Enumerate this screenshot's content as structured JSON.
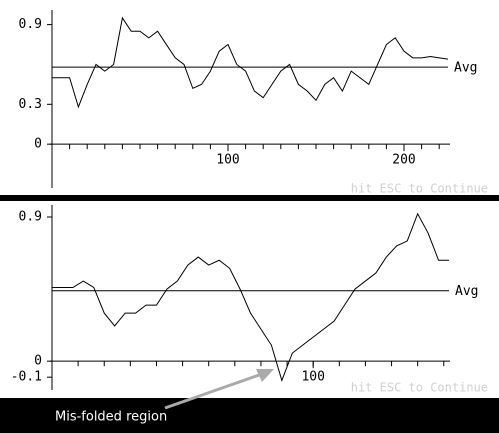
{
  "chart_data": [
    {
      "type": "line",
      "color": "#000000",
      "x": [
        0,
        5,
        10,
        15,
        20,
        25,
        30,
        35,
        40,
        45,
        50,
        55,
        60,
        65,
        70,
        75,
        80,
        85,
        90,
        95,
        100,
        105,
        110,
        115,
        120,
        125,
        130,
        135,
        140,
        145,
        150,
        155,
        160,
        165,
        170,
        175,
        180,
        185,
        190,
        195,
        200,
        205,
        210,
        215,
        220,
        225
      ],
      "values": [
        0.5,
        0.5,
        0.5,
        0.28,
        0.45,
        0.6,
        0.55,
        0.6,
        0.95,
        0.85,
        0.85,
        0.8,
        0.85,
        0.75,
        0.65,
        0.6,
        0.42,
        0.45,
        0.55,
        0.7,
        0.75,
        0.6,
        0.55,
        0.4,
        0.35,
        0.45,
        0.55,
        0.6,
        0.45,
        0.4,
        0.33,
        0.45,
        0.5,
        0.4,
        0.55,
        0.5,
        0.45,
        0.6,
        0.75,
        0.8,
        0.7,
        0.65,
        0.65,
        0.66,
        0.65,
        0.64
      ],
      "avg": 0.58,
      "avg_label": "Avg",
      "xlim": [
        0,
        225
      ],
      "ylim": [
        -0.33,
        1.01
      ],
      "xticks": [
        100,
        200
      ],
      "xminor_ticks": [
        10,
        20,
        30,
        40,
        50,
        60,
        70,
        80,
        90,
        100,
        110,
        120,
        130,
        140,
        150,
        160,
        170,
        180,
        190,
        200,
        210,
        220
      ],
      "yticks": [
        0.9,
        0.3,
        0
      ],
      "prompt": "hit ESC to Continue"
    },
    {
      "type": "line",
      "color": "#000000",
      "x": [
        0,
        4,
        8,
        12,
        16,
        20,
        24,
        28,
        32,
        36,
        40,
        44,
        48,
        52,
        56,
        60,
        64,
        68,
        72,
        76,
        80,
        84,
        88,
        92,
        96,
        100,
        104,
        108,
        112,
        116,
        120,
        124,
        128,
        132,
        136,
        140,
        144,
        148,
        152
      ],
      "values": [
        0.46,
        0.46,
        0.46,
        0.5,
        0.46,
        0.3,
        0.22,
        0.3,
        0.3,
        0.35,
        0.35,
        0.45,
        0.5,
        0.6,
        0.65,
        0.6,
        0.63,
        0.58,
        0.45,
        0.3,
        0.2,
        0.1,
        -0.12,
        0.05,
        0.1,
        0.15,
        0.2,
        0.25,
        0.35,
        0.45,
        0.5,
        0.55,
        0.65,
        0.72,
        0.75,
        0.92,
        0.8,
        0.63,
        0.63
      ],
      "avg": 0.44,
      "avg_label": "Avg",
      "xlim": [
        0,
        152
      ],
      "ylim": [
        -0.18,
        0.975
      ],
      "xticks": [
        100
      ],
      "xminor_ticks": [
        10,
        20,
        30,
        40,
        50,
        60,
        70,
        80,
        90,
        100,
        110,
        120,
        130,
        140,
        150
      ],
      "yticks": [
        0.9,
        0,
        -0.1
      ],
      "prompt": "hit ESC to Continue",
      "annotation": "Mis-folded region"
    }
  ]
}
